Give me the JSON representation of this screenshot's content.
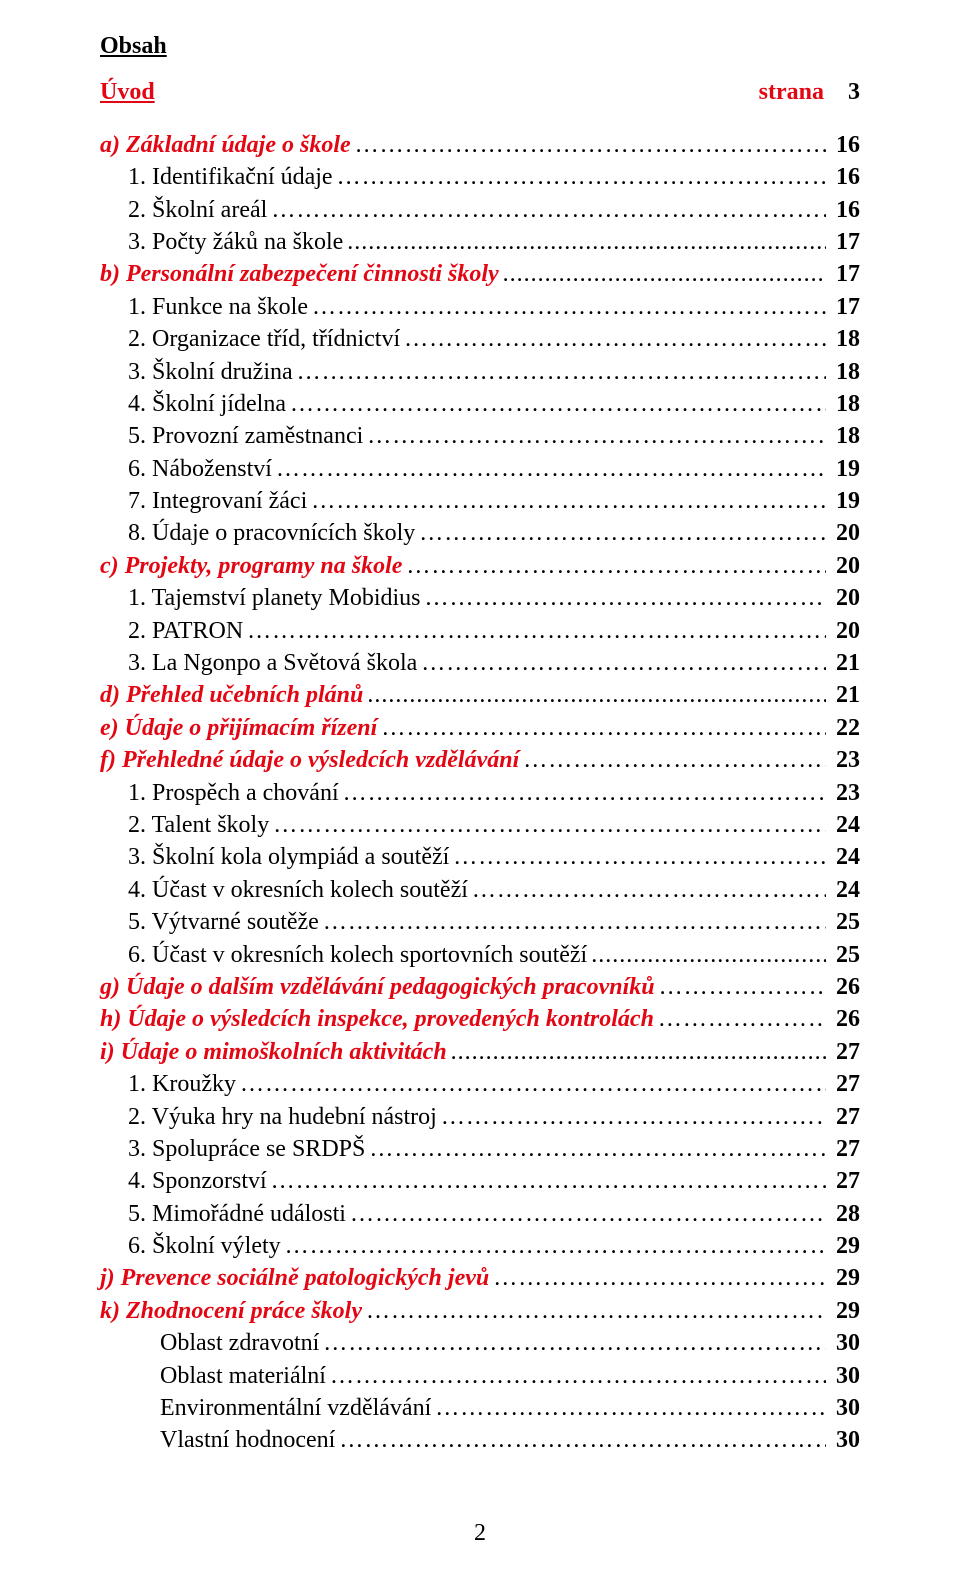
{
  "header": {
    "title": "Obsah",
    "intro_left": "Úvod",
    "intro_mid": "strana",
    "intro_page": "3"
  },
  "toc": [
    {
      "text": "a) Základní údaje o škole",
      "page": "16",
      "indent": 0,
      "style": "section",
      "leader": "ell"
    },
    {
      "text": "1. Identifikační údaje",
      "page": "16",
      "indent": 1,
      "style": "plain",
      "leader": "ell"
    },
    {
      "text": "2. Školní areál",
      "page": "16",
      "indent": 1,
      "style": "plain",
      "leader": "ell"
    },
    {
      "text": "3. Počty žáků na škole",
      "page": "17",
      "indent": 1,
      "style": "plain",
      "leader": "dots"
    },
    {
      "text": "b) Personální zabezpečení činnosti školy",
      "page": "17",
      "indent": 0,
      "style": "section",
      "leader": "dots"
    },
    {
      "text": "1. Funkce na škole",
      "page": "17",
      "indent": 1,
      "style": "plain",
      "leader": "ell"
    },
    {
      "text": "2. Organizace tříd, třídnictví",
      "page": "18",
      "indent": 1,
      "style": "plain",
      "leader": "ell"
    },
    {
      "text": "3. Školní družina",
      "page": "18",
      "indent": 1,
      "style": "plain",
      "leader": "ell"
    },
    {
      "text": "4. Školní jídelna",
      "page": "18",
      "indent": 1,
      "style": "plain",
      "leader": "ell"
    },
    {
      "text": "5. Provozní zaměstnanci",
      "page": "18",
      "indent": 1,
      "style": "plain",
      "leader": "ell"
    },
    {
      "text": "6. Náboženství",
      "page": "19",
      "indent": 1,
      "style": "plain",
      "leader": "ell"
    },
    {
      "text": "7. Integrovaní žáci",
      "page": "19",
      "indent": 1,
      "style": "plain",
      "leader": "ell"
    },
    {
      "text": "8. Údaje o pracovnících školy",
      "page": "20",
      "indent": 1,
      "style": "plain",
      "leader": "ell"
    },
    {
      "text": "c) Projekty, programy na škole",
      "page": "20",
      "indent": 0,
      "style": "section",
      "leader": "ell"
    },
    {
      "text": "1. Tajemství planety Mobidius",
      "page": "20",
      "indent": 1,
      "style": "plain",
      "leader": "ell"
    },
    {
      "text": "2. PATRON",
      "page": "20",
      "indent": 1,
      "style": "plain",
      "leader": "ell"
    },
    {
      "text": "3. La Ngonpo a Světová škola",
      "page": "21",
      "indent": 1,
      "style": "plain",
      "leader": "ell"
    },
    {
      "text": "d) Přehled učebních plánů",
      "page": "21",
      "indent": 0,
      "style": "section",
      "leader": "dots"
    },
    {
      "text": "e) Údaje o přijímacím řízení",
      "page": "22",
      "indent": 0,
      "style": "section",
      "leader": "ell"
    },
    {
      "text": "f) Přehledné údaje o výsledcích vzdělávání",
      "page": "23",
      "indent": 0,
      "style": "section",
      "leader": "ell"
    },
    {
      "text": "1. Prospěch a chování",
      "page": "23",
      "indent": 1,
      "style": "plain",
      "leader": "ell"
    },
    {
      "text": "2. Talent školy",
      "page": "24",
      "indent": 1,
      "style": "plain",
      "leader": "ell"
    },
    {
      "text": "3. Školní kola olympiád a soutěží",
      "page": "24",
      "indent": 1,
      "style": "plain",
      "leader": "ell"
    },
    {
      "text": "4. Účast v okresních kolech soutěží",
      "page": "24",
      "indent": 1,
      "style": "plain",
      "leader": "ell"
    },
    {
      "text": "5. Výtvarné soutěže",
      "page": "25",
      "indent": 1,
      "style": "plain",
      "leader": "ell"
    },
    {
      "text": "6. Účast v okresních kolech sportovních soutěží",
      "page": "25",
      "indent": 1,
      "style": "plain",
      "leader": "dots"
    },
    {
      "text": "g) Údaje o dalším vzdělávání pedagogických pracovníků",
      "page": "26",
      "indent": 0,
      "style": "section",
      "leader": "ell"
    },
    {
      "text": "h) Údaje o výsledcích inspekce, provedených kontrolách",
      "page": "26",
      "indent": 0,
      "style": "section",
      "leader": "ell"
    },
    {
      "text": "i) Údaje o mimoškolních aktivitách",
      "page": "27",
      "indent": 0,
      "style": "section",
      "leader": "dots"
    },
    {
      "text": "1. Kroužky",
      "page": "27",
      "indent": 1,
      "style": "plain",
      "leader": "ell"
    },
    {
      "text": "2. Výuka hry na hudební nástroj",
      "page": "27",
      "indent": 1,
      "style": "plain",
      "leader": "ell"
    },
    {
      "text": "3. Spolupráce se SRDPŠ",
      "page": "27",
      "indent": 1,
      "style": "plain",
      "leader": "ell"
    },
    {
      "text": "4. Sponzorství",
      "page": "27",
      "indent": 1,
      "style": "plain",
      "leader": "ell"
    },
    {
      "text": "5. Mimořádné události",
      "page": "28",
      "indent": 1,
      "style": "plain",
      "leader": "ell"
    },
    {
      "text": "6. Školní výlety",
      "page": "29",
      "indent": 1,
      "style": "plain",
      "leader": "ell"
    },
    {
      "text": "j) Prevence sociálně patologických jevů",
      "page": "29",
      "indent": 0,
      "style": "section",
      "leader": "ell"
    },
    {
      "text": "k)  Zhodnocení práce školy",
      "page": "29",
      "indent": 0,
      "style": "section",
      "leader": "ell"
    },
    {
      "text": "Oblast zdravotní",
      "page": "30",
      "indent": 2,
      "style": "plain",
      "leader": "ell"
    },
    {
      "text": "Oblast materiální",
      "page": "30",
      "indent": 2,
      "style": "plain",
      "leader": "ell"
    },
    {
      "text": "Environmentální vzdělávání",
      "page": "30",
      "indent": 2,
      "style": "plain",
      "leader": "ell"
    },
    {
      "text": "Vlastní hodnocení",
      "page": "30",
      "indent": 2,
      "style": "plain",
      "leader": "ell"
    }
  ],
  "footer": {
    "page_number": "2"
  },
  "colors": {
    "red": "#e30613",
    "black": "#000000",
    "background": "#ffffff"
  },
  "typography": {
    "font_family": "Times New Roman",
    "font_size_pt": 18
  }
}
